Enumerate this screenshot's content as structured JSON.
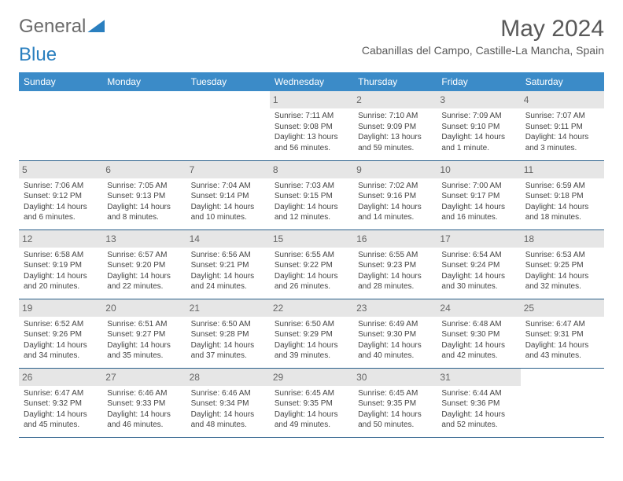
{
  "brand": {
    "part1": "General",
    "part2": "Blue"
  },
  "title": "May 2024",
  "subtitle": "Cabanillas del Campo, Castille-La Mancha, Spain",
  "headers": [
    "Sunday",
    "Monday",
    "Tuesday",
    "Wednesday",
    "Thursday",
    "Friday",
    "Saturday"
  ],
  "colors": {
    "header_bg": "#3b8bc8",
    "header_text": "#ffffff",
    "daynum_bg": "#e6e6e6",
    "row_border": "#2a5f8a",
    "title_color": "#595959"
  },
  "weeks": [
    [
      {
        "n": "",
        "sr": "",
        "ss": "",
        "dl": ""
      },
      {
        "n": "",
        "sr": "",
        "ss": "",
        "dl": ""
      },
      {
        "n": "",
        "sr": "",
        "ss": "",
        "dl": ""
      },
      {
        "n": "1",
        "sr": "Sunrise: 7:11 AM",
        "ss": "Sunset: 9:08 PM",
        "dl": "Daylight: 13 hours and 56 minutes."
      },
      {
        "n": "2",
        "sr": "Sunrise: 7:10 AM",
        "ss": "Sunset: 9:09 PM",
        "dl": "Daylight: 13 hours and 59 minutes."
      },
      {
        "n": "3",
        "sr": "Sunrise: 7:09 AM",
        "ss": "Sunset: 9:10 PM",
        "dl": "Daylight: 14 hours and 1 minute."
      },
      {
        "n": "4",
        "sr": "Sunrise: 7:07 AM",
        "ss": "Sunset: 9:11 PM",
        "dl": "Daylight: 14 hours and 3 minutes."
      }
    ],
    [
      {
        "n": "5",
        "sr": "Sunrise: 7:06 AM",
        "ss": "Sunset: 9:12 PM",
        "dl": "Daylight: 14 hours and 6 minutes."
      },
      {
        "n": "6",
        "sr": "Sunrise: 7:05 AM",
        "ss": "Sunset: 9:13 PM",
        "dl": "Daylight: 14 hours and 8 minutes."
      },
      {
        "n": "7",
        "sr": "Sunrise: 7:04 AM",
        "ss": "Sunset: 9:14 PM",
        "dl": "Daylight: 14 hours and 10 minutes."
      },
      {
        "n": "8",
        "sr": "Sunrise: 7:03 AM",
        "ss": "Sunset: 9:15 PM",
        "dl": "Daylight: 14 hours and 12 minutes."
      },
      {
        "n": "9",
        "sr": "Sunrise: 7:02 AM",
        "ss": "Sunset: 9:16 PM",
        "dl": "Daylight: 14 hours and 14 minutes."
      },
      {
        "n": "10",
        "sr": "Sunrise: 7:00 AM",
        "ss": "Sunset: 9:17 PM",
        "dl": "Daylight: 14 hours and 16 minutes."
      },
      {
        "n": "11",
        "sr": "Sunrise: 6:59 AM",
        "ss": "Sunset: 9:18 PM",
        "dl": "Daylight: 14 hours and 18 minutes."
      }
    ],
    [
      {
        "n": "12",
        "sr": "Sunrise: 6:58 AM",
        "ss": "Sunset: 9:19 PM",
        "dl": "Daylight: 14 hours and 20 minutes."
      },
      {
        "n": "13",
        "sr": "Sunrise: 6:57 AM",
        "ss": "Sunset: 9:20 PM",
        "dl": "Daylight: 14 hours and 22 minutes."
      },
      {
        "n": "14",
        "sr": "Sunrise: 6:56 AM",
        "ss": "Sunset: 9:21 PM",
        "dl": "Daylight: 14 hours and 24 minutes."
      },
      {
        "n": "15",
        "sr": "Sunrise: 6:55 AM",
        "ss": "Sunset: 9:22 PM",
        "dl": "Daylight: 14 hours and 26 minutes."
      },
      {
        "n": "16",
        "sr": "Sunrise: 6:55 AM",
        "ss": "Sunset: 9:23 PM",
        "dl": "Daylight: 14 hours and 28 minutes."
      },
      {
        "n": "17",
        "sr": "Sunrise: 6:54 AM",
        "ss": "Sunset: 9:24 PM",
        "dl": "Daylight: 14 hours and 30 minutes."
      },
      {
        "n": "18",
        "sr": "Sunrise: 6:53 AM",
        "ss": "Sunset: 9:25 PM",
        "dl": "Daylight: 14 hours and 32 minutes."
      }
    ],
    [
      {
        "n": "19",
        "sr": "Sunrise: 6:52 AM",
        "ss": "Sunset: 9:26 PM",
        "dl": "Daylight: 14 hours and 34 minutes."
      },
      {
        "n": "20",
        "sr": "Sunrise: 6:51 AM",
        "ss": "Sunset: 9:27 PM",
        "dl": "Daylight: 14 hours and 35 minutes."
      },
      {
        "n": "21",
        "sr": "Sunrise: 6:50 AM",
        "ss": "Sunset: 9:28 PM",
        "dl": "Daylight: 14 hours and 37 minutes."
      },
      {
        "n": "22",
        "sr": "Sunrise: 6:50 AM",
        "ss": "Sunset: 9:29 PM",
        "dl": "Daylight: 14 hours and 39 minutes."
      },
      {
        "n": "23",
        "sr": "Sunrise: 6:49 AM",
        "ss": "Sunset: 9:30 PM",
        "dl": "Daylight: 14 hours and 40 minutes."
      },
      {
        "n": "24",
        "sr": "Sunrise: 6:48 AM",
        "ss": "Sunset: 9:30 PM",
        "dl": "Daylight: 14 hours and 42 minutes."
      },
      {
        "n": "25",
        "sr": "Sunrise: 6:47 AM",
        "ss": "Sunset: 9:31 PM",
        "dl": "Daylight: 14 hours and 43 minutes."
      }
    ],
    [
      {
        "n": "26",
        "sr": "Sunrise: 6:47 AM",
        "ss": "Sunset: 9:32 PM",
        "dl": "Daylight: 14 hours and 45 minutes."
      },
      {
        "n": "27",
        "sr": "Sunrise: 6:46 AM",
        "ss": "Sunset: 9:33 PM",
        "dl": "Daylight: 14 hours and 46 minutes."
      },
      {
        "n": "28",
        "sr": "Sunrise: 6:46 AM",
        "ss": "Sunset: 9:34 PM",
        "dl": "Daylight: 14 hours and 48 minutes."
      },
      {
        "n": "29",
        "sr": "Sunrise: 6:45 AM",
        "ss": "Sunset: 9:35 PM",
        "dl": "Daylight: 14 hours and 49 minutes."
      },
      {
        "n": "30",
        "sr": "Sunrise: 6:45 AM",
        "ss": "Sunset: 9:35 PM",
        "dl": "Daylight: 14 hours and 50 minutes."
      },
      {
        "n": "31",
        "sr": "Sunrise: 6:44 AM",
        "ss": "Sunset: 9:36 PM",
        "dl": "Daylight: 14 hours and 52 minutes."
      },
      {
        "n": "",
        "sr": "",
        "ss": "",
        "dl": ""
      }
    ]
  ]
}
